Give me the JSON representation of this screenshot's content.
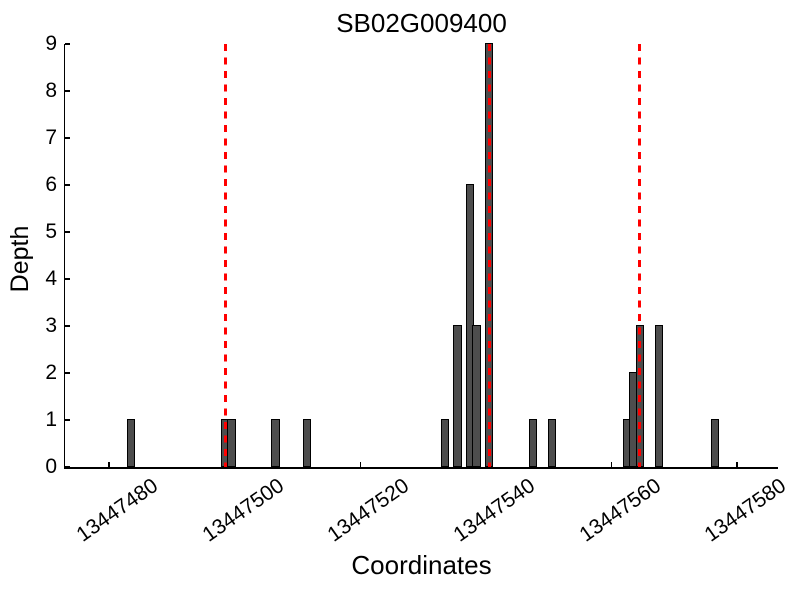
{
  "chart_data": {
    "type": "bar",
    "title": "SB02G009400",
    "xlabel": "Coordinates",
    "ylabel": "Depth",
    "xlim": [
      13447473,
      13447586.5
    ],
    "ylim": [
      0,
      9
    ],
    "x_ticks": [
      13447480,
      13447500,
      13447520,
      13447540,
      13447560,
      13447580
    ],
    "y_ticks": [
      0,
      1,
      2,
      3,
      4,
      5,
      6,
      7,
      8,
      9
    ],
    "grid": false,
    "legend": "none",
    "bar_width": 1,
    "bar_color": "#4d4d4d",
    "bar_edge_color": "#000000",
    "vline_color": "#ff0000",
    "vline_style": "dashed",
    "vlines": [
      13447498.5,
      13447540.5,
      13447564.5
    ],
    "bars": [
      {
        "x": 13447483,
        "depth": 1
      },
      {
        "x": 13447498,
        "depth": 1
      },
      {
        "x": 13447499,
        "depth": 1
      },
      {
        "x": 13447506,
        "depth": 1
      },
      {
        "x": 13447511,
        "depth": 1
      },
      {
        "x": 13447533,
        "depth": 1
      },
      {
        "x": 13447535,
        "depth": 3
      },
      {
        "x": 13447537,
        "depth": 6
      },
      {
        "x": 13447538,
        "depth": 3
      },
      {
        "x": 13447540,
        "depth": 9
      },
      {
        "x": 13447547,
        "depth": 1
      },
      {
        "x": 13447550,
        "depth": 1
      },
      {
        "x": 13447562,
        "depth": 1
      },
      {
        "x": 13447563,
        "depth": 2
      },
      {
        "x": 13447564,
        "depth": 3
      },
      {
        "x": 13447567,
        "depth": 3
      },
      {
        "x": 13447576,
        "depth": 1
      }
    ]
  }
}
